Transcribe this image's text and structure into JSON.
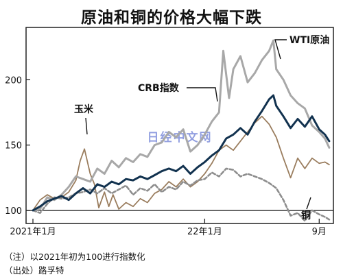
{
  "chart_data": {
    "type": "line",
    "title": "原油和铜的价格大幅下跌",
    "x_ticks": [
      {
        "label": "2021年1月",
        "t": 0
      },
      {
        "label": "22年1月",
        "t": 12
      },
      {
        "label": "9月",
        "t": 20
      }
    ],
    "y_ticks": [
      100,
      150,
      200
    ],
    "ylim": [
      90,
      240
    ],
    "xlim": [
      0,
      20.8
    ],
    "reference_line": 100,
    "series": [
      {
        "name": "WTI原油",
        "color": "#a8a8a8",
        "style": "solid",
        "points": [
          [
            0,
            100
          ],
          [
            0.5,
            101
          ],
          [
            1,
            110
          ],
          [
            1.5,
            108
          ],
          [
            2,
            112
          ],
          [
            2.5,
            118
          ],
          [
            3,
            126
          ],
          [
            3.5,
            124
          ],
          [
            4,
            122
          ],
          [
            4.5,
            132
          ],
          [
            5,
            128
          ],
          [
            5.5,
            138
          ],
          [
            6,
            133
          ],
          [
            6.5,
            140
          ],
          [
            7,
            137
          ],
          [
            7.5,
            143
          ],
          [
            8,
            141
          ],
          [
            8.5,
            150
          ],
          [
            9,
            152
          ],
          [
            9.5,
            160
          ],
          [
            10,
            156
          ],
          [
            10.5,
            162
          ],
          [
            11,
            145
          ],
          [
            11.5,
            150
          ],
          [
            12,
            158
          ],
          [
            12.5,
            168
          ],
          [
            13,
            175
          ],
          [
            13.3,
            222
          ],
          [
            13.7,
            186
          ],
          [
            14,
            208
          ],
          [
            14.5,
            218
          ],
          [
            15,
            198
          ],
          [
            15.5,
            205
          ],
          [
            16,
            215
          ],
          [
            16.5,
            222
          ],
          [
            16.8,
            230
          ],
          [
            17,
            208
          ],
          [
            17.5,
            200
          ],
          [
            18,
            188
          ],
          [
            18.5,
            182
          ],
          [
            19,
            178
          ],
          [
            19.5,
            165
          ],
          [
            20,
            160
          ],
          [
            20.4,
            155
          ],
          [
            20.7,
            148
          ]
        ]
      },
      {
        "name": "CRB指数",
        "color": "#12324f",
        "style": "solid",
        "points": [
          [
            0,
            100
          ],
          [
            0.5,
            103
          ],
          [
            1,
            107
          ],
          [
            1.5,
            109
          ],
          [
            2,
            111
          ],
          [
            2.5,
            108
          ],
          [
            3,
            113
          ],
          [
            3.5,
            117
          ],
          [
            4,
            113
          ],
          [
            4.5,
            120
          ],
          [
            5,
            118
          ],
          [
            5.5,
            122
          ],
          [
            6,
            120
          ],
          [
            6.5,
            124
          ],
          [
            7,
            123
          ],
          [
            7.5,
            126
          ],
          [
            8,
            124
          ],
          [
            8.5,
            127
          ],
          [
            9,
            130
          ],
          [
            9.5,
            132
          ],
          [
            10,
            130
          ],
          [
            10.5,
            134
          ],
          [
            11,
            128
          ],
          [
            11.5,
            133
          ],
          [
            12,
            137
          ],
          [
            12.5,
            142
          ],
          [
            13,
            146
          ],
          [
            13.5,
            155
          ],
          [
            14,
            158
          ],
          [
            14.5,
            163
          ],
          [
            15,
            158
          ],
          [
            15.5,
            168
          ],
          [
            16,
            176
          ],
          [
            16.5,
            185
          ],
          [
            16.8,
            188
          ],
          [
            17,
            180
          ],
          [
            17.5,
            172
          ],
          [
            18,
            163
          ],
          [
            18.5,
            170
          ],
          [
            19,
            164
          ],
          [
            19.5,
            172
          ],
          [
            20,
            162
          ],
          [
            20.4,
            158
          ],
          [
            20.7,
            153
          ]
        ]
      },
      {
        "name": "玉米",
        "color": "#9a7d5e",
        "style": "solid",
        "points": [
          [
            0,
            100
          ],
          [
            0.5,
            108
          ],
          [
            1,
            112
          ],
          [
            1.5,
            109
          ],
          [
            2,
            110
          ],
          [
            2.5,
            114
          ],
          [
            3,
            123
          ],
          [
            3.3,
            138
          ],
          [
            3.6,
            147
          ],
          [
            4,
            128
          ],
          [
            4.3,
            120
          ],
          [
            4.6,
            102
          ],
          [
            5,
            114
          ],
          [
            5.3,
            103
          ],
          [
            5.6,
            112
          ],
          [
            6,
            101
          ],
          [
            6.5,
            106
          ],
          [
            7,
            103
          ],
          [
            7.5,
            109
          ],
          [
            8,
            106
          ],
          [
            8.5,
            113
          ],
          [
            9,
            116
          ],
          [
            9.5,
            122
          ],
          [
            10,
            118
          ],
          [
            10.5,
            124
          ],
          [
            11,
            118
          ],
          [
            11.5,
            122
          ],
          [
            12,
            128
          ],
          [
            12.5,
            136
          ],
          [
            13,
            146
          ],
          [
            13.5,
            150
          ],
          [
            14,
            146
          ],
          [
            14.5,
            153
          ],
          [
            15,
            160
          ],
          [
            15.5,
            167
          ],
          [
            16,
            172
          ],
          [
            16.5,
            166
          ],
          [
            17,
            156
          ],
          [
            17.5,
            140
          ],
          [
            18,
            125
          ],
          [
            18.5,
            140
          ],
          [
            19,
            132
          ],
          [
            19.5,
            140
          ],
          [
            20,
            136
          ],
          [
            20.4,
            137
          ],
          [
            20.7,
            135
          ]
        ]
      },
      {
        "name": "铜",
        "color": "#8d8d8d",
        "style": "dashed",
        "points": [
          [
            0,
            100
          ],
          [
            0.5,
            98
          ],
          [
            1,
            105
          ],
          [
            1.5,
            110
          ],
          [
            2,
            109
          ],
          [
            2.5,
            110
          ],
          [
            3,
            113
          ],
          [
            3.5,
            114
          ],
          [
            4,
            116
          ],
          [
            4.5,
            113
          ],
          [
            5,
            117
          ],
          [
            5.5,
            113
          ],
          [
            6,
            116
          ],
          [
            6.5,
            119
          ],
          [
            7,
            112
          ],
          [
            7.5,
            117
          ],
          [
            8,
            115
          ],
          [
            8.5,
            120
          ],
          [
            9,
            114
          ],
          [
            9.5,
            118
          ],
          [
            10,
            116
          ],
          [
            10.5,
            122
          ],
          [
            11,
            119
          ],
          [
            11.5,
            123
          ],
          [
            12,
            124
          ],
          [
            12.5,
            129
          ],
          [
            13,
            126
          ],
          [
            13.5,
            132
          ],
          [
            14,
            131
          ],
          [
            14.5,
            126
          ],
          [
            15,
            128
          ],
          [
            15.5,
            126
          ],
          [
            16,
            124
          ],
          [
            16.5,
            121
          ],
          [
            17,
            117
          ],
          [
            17.5,
            108
          ],
          [
            18,
            96
          ],
          [
            18.5,
            98
          ],
          [
            19,
            92
          ],
          [
            19.5,
            100
          ],
          [
            20,
            97
          ],
          [
            20.4,
            95
          ],
          [
            20.7,
            93
          ]
        ]
      }
    ],
    "annotations": [
      {
        "text": "WTI原油",
        "series": "WTI原油"
      },
      {
        "text": "CRB指数",
        "series": "CRB指数"
      },
      {
        "text": "玉米",
        "series": "玉米"
      },
      {
        "text": "铜",
        "series": "铜"
      }
    ],
    "watermark": "日经中文网",
    "notes": [
      "（注）以2021年初为100进行指数化",
      "（出处）路孚特"
    ]
  }
}
